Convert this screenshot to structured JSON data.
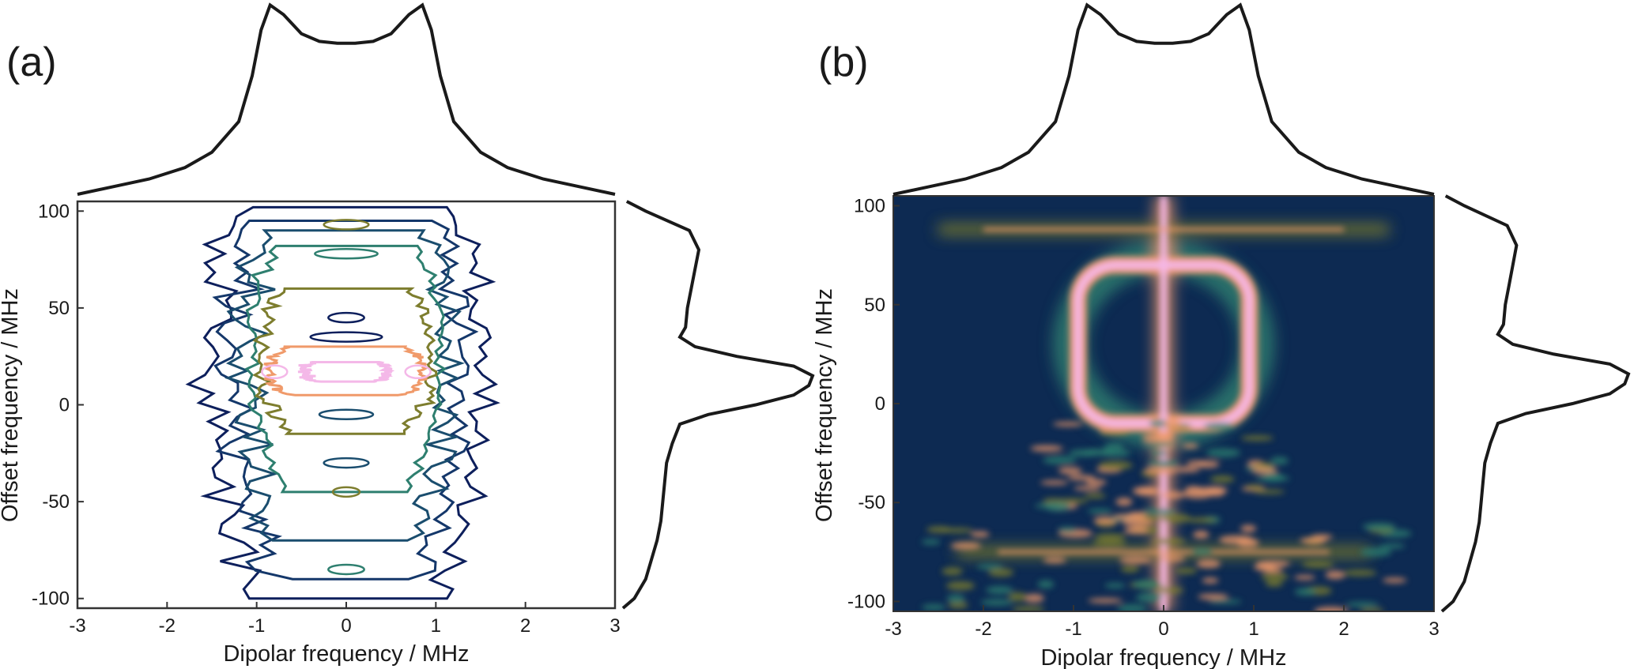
{
  "chart_data": [
    {
      "panel": "(a)",
      "type": "heatmap",
      "style": "contour",
      "xlabel": "Dipolar frequency / MHz",
      "ylabel": "Offset frequency / MHz",
      "xlim": [
        -3,
        3
      ],
      "ylim": [
        -105,
        105
      ],
      "xticks": [
        -3,
        -2,
        -1,
        0,
        1,
        2,
        3
      ],
      "yticks": [
        -100,
        -50,
        0,
        50,
        100
      ],
      "xtick_labels": [
        "-3",
        "-2",
        "-1",
        "0",
        "1",
        "2",
        "3"
      ],
      "ytick_labels": [
        "-100",
        "-50",
        "0",
        "50",
        "100"
      ],
      "grid": false,
      "colormap": [
        "#0d1f5c",
        "#1a4d6e",
        "#2e7f6f",
        "#7d7d2e",
        "#f09a6a",
        "#f4b8e8"
      ],
      "contour_levels": [
        {
          "level": 1,
          "half_width": 1.55,
          "y_extent": [
            -100,
            102
          ],
          "color": "#0d1f5c"
        },
        {
          "level": 2,
          "half_width": 1.3,
          "y_extent": [
            -90,
            95
          ],
          "color": "#14376a"
        },
        {
          "level": 3,
          "half_width": 1.15,
          "y_extent": [
            -70,
            90
          ],
          "color": "#1a4d6e"
        },
        {
          "level": 4,
          "half_width": 1.05,
          "y_extent": [
            -45,
            82
          ],
          "color": "#2e7f6f"
        },
        {
          "level": 5,
          "half_width": 0.95,
          "y_extent": [
            -15,
            60
          ],
          "color": "#7d7d2e"
        },
        {
          "level": 6,
          "half_width": 0.85,
          "y_extent": [
            5,
            30
          ],
          "color": "#f09a6a"
        },
        {
          "level": 7,
          "half_width": 0.45,
          "y_extent": [
            12,
            22
          ],
          "color": "#f4b8e8"
        }
      ],
      "x_projection": {
        "x": [
          -3,
          -2.6,
          -2.2,
          -1.8,
          -1.5,
          -1.2,
          -1.05,
          -0.95,
          -0.85,
          -0.7,
          -0.5,
          -0.3,
          -0.1,
          0,
          0.1,
          0.3,
          0.5,
          0.7,
          0.85,
          0.95,
          1.05,
          1.2,
          1.5,
          1.8,
          2.2,
          2.6,
          3
        ],
        "y": [
          0.0,
          0.04,
          0.08,
          0.14,
          0.22,
          0.38,
          0.62,
          0.86,
          0.99,
          0.94,
          0.84,
          0.8,
          0.79,
          0.79,
          0.79,
          0.8,
          0.84,
          0.94,
          0.99,
          0.86,
          0.62,
          0.38,
          0.22,
          0.14,
          0.08,
          0.04,
          0.0
        ]
      },
      "y_projection": {
        "y": [
          -105,
          -100,
          -90,
          -80,
          -70,
          -60,
          -50,
          -40,
          -30,
          -20,
          -10,
          -5,
          0,
          5,
          10,
          15,
          20,
          25,
          30,
          35,
          40,
          50,
          60,
          70,
          80,
          90,
          100,
          105
        ],
        "x": [
          0.0,
          0.06,
          0.12,
          0.15,
          0.18,
          0.2,
          0.21,
          0.22,
          0.23,
          0.26,
          0.3,
          0.45,
          0.7,
          0.9,
          0.98,
          1.0,
          0.9,
          0.6,
          0.38,
          0.3,
          0.33,
          0.34,
          0.36,
          0.38,
          0.4,
          0.35,
          0.12,
          0.02
        ]
      }
    },
    {
      "panel": "(b)",
      "type": "heatmap",
      "style": "image",
      "xlabel": "Dipolar frequency / MHz",
      "ylabel": "Offset frequency / MHz",
      "xlim": [
        -3,
        3
      ],
      "ylim": [
        -105,
        105
      ],
      "xticks": [
        -3,
        -2,
        -1,
        0,
        1,
        2,
        3
      ],
      "yticks": [
        -100,
        -50,
        0,
        50,
        100
      ],
      "xtick_labels": [
        "-3",
        "-2",
        "-1",
        "0",
        "1",
        "2",
        "3"
      ],
      "ytick_labels": [
        "-100",
        "-50",
        "0",
        "50",
        "100"
      ],
      "grid": false,
      "colormap": [
        "#0d2a52",
        "#1a4d6e",
        "#2e7f6f",
        "#7d7d2e",
        "#f09a6a",
        "#f4b8e8"
      ],
      "features": [
        {
          "shape": "ring",
          "center": [
            0,
            30
          ],
          "half_width": 0.95,
          "half_height": 40,
          "intensity": 0.95
        },
        {
          "shape": "vertical_line",
          "x": 0,
          "y_range": [
            -105,
            105
          ],
          "intensity": 0.85
        },
        {
          "shape": "horizontal_line",
          "y": 88,
          "x_range": [
            -2.5,
            2.5
          ],
          "intensity": 0.6
        },
        {
          "shape": "horizontal_line",
          "y": -75,
          "x_range": [
            -2.3,
            2.3
          ],
          "intensity": 0.6
        },
        {
          "shape": "speckle_band",
          "y_range": [
            -105,
            -60
          ],
          "x_range": [
            -2.6,
            2.6
          ],
          "intensity": 0.5
        },
        {
          "shape": "speckle_band",
          "y_range": [
            -60,
            -10
          ],
          "x_range": [
            -1.3,
            1.3
          ],
          "intensity": 0.55
        }
      ],
      "x_projection": {
        "x": [
          -3,
          -2.6,
          -2.2,
          -1.8,
          -1.5,
          -1.2,
          -1.05,
          -0.95,
          -0.85,
          -0.7,
          -0.5,
          -0.3,
          -0.1,
          0,
          0.1,
          0.3,
          0.5,
          0.7,
          0.85,
          0.95,
          1.05,
          1.2,
          1.5,
          1.8,
          2.2,
          2.6,
          3
        ],
        "y": [
          0.0,
          0.04,
          0.08,
          0.14,
          0.22,
          0.38,
          0.62,
          0.86,
          0.99,
          0.94,
          0.84,
          0.8,
          0.79,
          0.79,
          0.79,
          0.8,
          0.84,
          0.94,
          0.99,
          0.86,
          0.62,
          0.38,
          0.22,
          0.14,
          0.08,
          0.04,
          0.0
        ]
      },
      "y_projection": {
        "y": [
          -105,
          -100,
          -90,
          -80,
          -70,
          -60,
          -50,
          -40,
          -30,
          -20,
          -10,
          -5,
          0,
          5,
          10,
          15,
          20,
          25,
          30,
          35,
          40,
          50,
          60,
          70,
          80,
          90,
          100,
          105
        ],
        "x": [
          0.0,
          0.06,
          0.12,
          0.15,
          0.18,
          0.2,
          0.21,
          0.22,
          0.23,
          0.26,
          0.3,
          0.45,
          0.7,
          0.9,
          0.98,
          1.0,
          0.9,
          0.6,
          0.38,
          0.3,
          0.33,
          0.34,
          0.36,
          0.38,
          0.4,
          0.35,
          0.12,
          0.02
        ]
      }
    }
  ]
}
